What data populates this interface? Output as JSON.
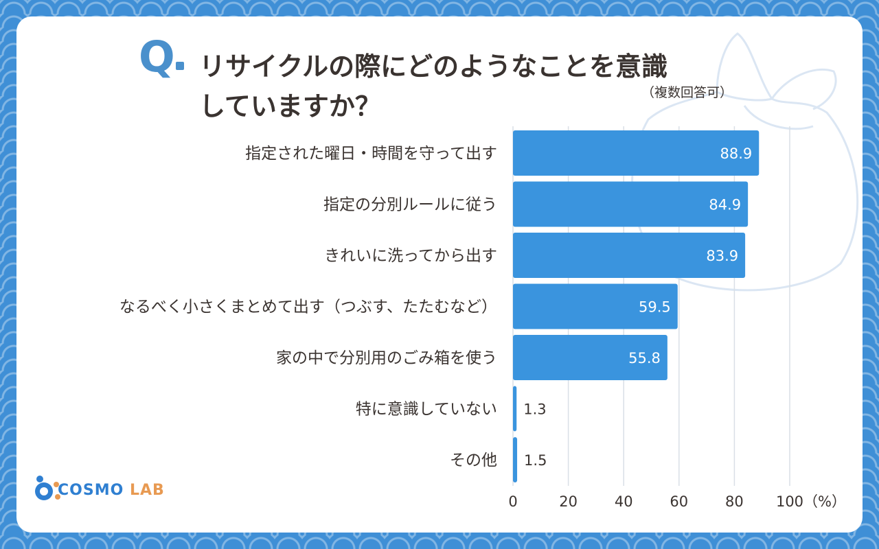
{
  "header": {
    "q_mark": "Q",
    "title_line1": "リサイクルの際にどのようなことを意識",
    "title_line2": "していますか？",
    "note": "（複数回答可）"
  },
  "logo": {
    "part1": "COSMO",
    "part2": "LAB"
  },
  "colors": {
    "bar": "#3a94de",
    "accent": "#4a90cc",
    "text": "#3a3330",
    "grid": "#d9dfe6"
  },
  "chart_data": {
    "type": "bar",
    "orientation": "horizontal",
    "categories": [
      "指定された曜日・時間を守って出す",
      "指定の分別ルールに従う",
      "きれいに洗ってから出す",
      "なるべく小さくまとめて出す（つぶす、たたむなど）",
      "家の中で分別用のごみ箱を使う",
      "特に意識していない",
      "その他"
    ],
    "values": [
      88.9,
      84.9,
      83.9,
      59.5,
      55.8,
      1.3,
      1.5
    ],
    "value_labels": [
      "88.9",
      "84.9",
      "83.9",
      "59.5",
      "55.8",
      "1.3",
      "1.5"
    ],
    "xlim": [
      0,
      100
    ],
    "xticks": [
      "0",
      "20",
      "40",
      "60",
      "80",
      "100"
    ],
    "xunit": "（%）",
    "grid": true
  }
}
